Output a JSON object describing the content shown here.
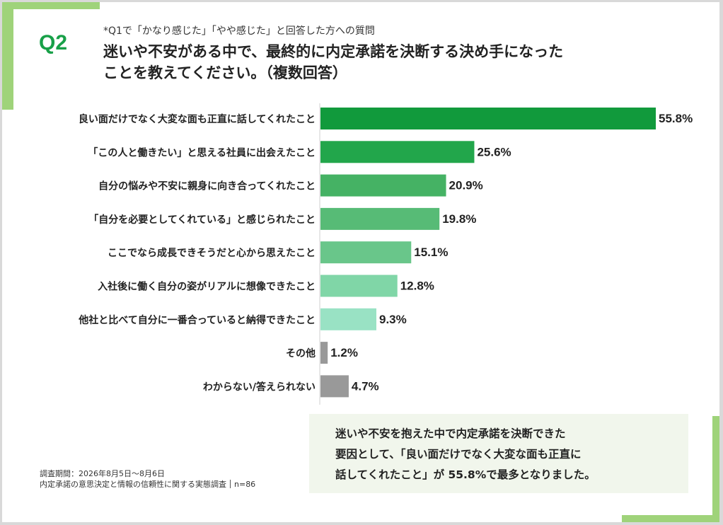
{
  "header": {
    "q_label": "Q2",
    "note": "*Q1で「かなり感じた」「やや感じた」と回答した方への質問",
    "title_line1": "迷いや不安がある中で、最終的に内定承諾を決断する決め手になった",
    "title_line2": "ことを教えてください。（複数回答）"
  },
  "chart_data": {
    "type": "bar",
    "orientation": "horizontal",
    "categories": [
      "良い面だけでなく大変な面も正直に話してくれたこと",
      "「この人と働きたい」と思える社員に出会えたこと",
      "自分の悩みや不安に親身に向き合ってくれたこと",
      "「自分を必要としてくれている」と感じられたこと",
      "ここでなら成長できそうだと心から思えたこと",
      "入社後に働く自分の姿がリアルに想像できたこと",
      "他社と比べて自分に一番合っていると納得できたこと",
      "その他",
      "わからない/答えられない"
    ],
    "values": [
      55.8,
      25.6,
      20.9,
      19.8,
      15.1,
      12.8,
      9.3,
      1.2,
      4.7
    ],
    "value_labels": [
      "55.8%",
      "25.6%",
      "20.9%",
      "19.8%",
      "15.1%",
      "12.8%",
      "9.3%",
      "1.2%",
      "4.7%"
    ],
    "colors": [
      "#119a3c",
      "#22a64b",
      "#45b264",
      "#57bb76",
      "#69c68a",
      "#80d6a7",
      "#99e2c4",
      "#999999",
      "#999999"
    ],
    "xlim": [
      0,
      55.8
    ],
    "unit": "%",
    "grid": false
  },
  "summary": {
    "line1": "迷いや不安を抱えた中で内定承諾を決断できた",
    "line2": "要因として、「良い面だけでなく大変な面も正直に",
    "line3": "話してくれたこと」が 55.8%で最多となりました。"
  },
  "footer": {
    "period": "調査期間：2026年8月5日～8月6日",
    "survey": "内定承諾の意思決定と情報の信頼性に関する実態調査",
    "n": "n=86"
  }
}
